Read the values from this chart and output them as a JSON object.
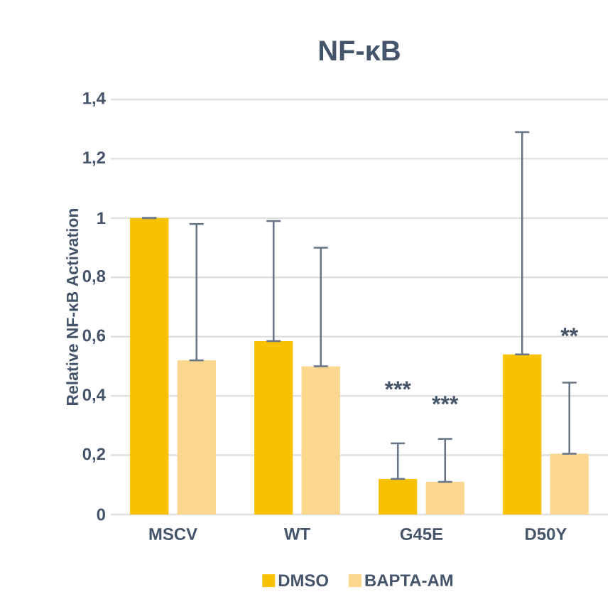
{
  "chart_data": {
    "type": "bar",
    "title": "NF-κB",
    "ylabel": "Relative NF-κB Activation",
    "categories": [
      "MSCV",
      "WT",
      "G45E",
      "D50Y"
    ],
    "series": [
      {
        "name": "DMSO",
        "color": "#f9c200",
        "values": [
          1.0,
          0.585,
          0.12,
          0.54
        ],
        "errors": [
          [
            1.0,
            1.0
          ],
          [
            0.585,
            0.99
          ],
          [
            0.12,
            0.24
          ],
          [
            0.54,
            1.29
          ]
        ]
      },
      {
        "name": "BAPTA-AM",
        "color": "#fbd68e",
        "values": [
          0.52,
          0.5,
          0.11,
          0.205
        ],
        "errors": [
          [
            0.52,
            0.98
          ],
          [
            0.5,
            0.9
          ],
          [
            0.11,
            0.255
          ],
          [
            0.205,
            0.445
          ]
        ]
      }
    ],
    "ylim": [
      0,
      1.4
    ],
    "yticks": [
      0,
      {
        "value": 0.2,
        "label": "0,2"
      },
      {
        "value": 0.4,
        "label": "0,4"
      },
      {
        "value": 0.6,
        "label": "0,6"
      },
      {
        "value": 0.8,
        "label": "0,8"
      },
      1,
      {
        "value": 1.2,
        "label": "1,2"
      },
      {
        "value": 1.4,
        "label": "1,4"
      }
    ],
    "annotations": [
      "***",
      "***",
      "**"
    ],
    "grid": "y",
    "legend": "bottom"
  }
}
